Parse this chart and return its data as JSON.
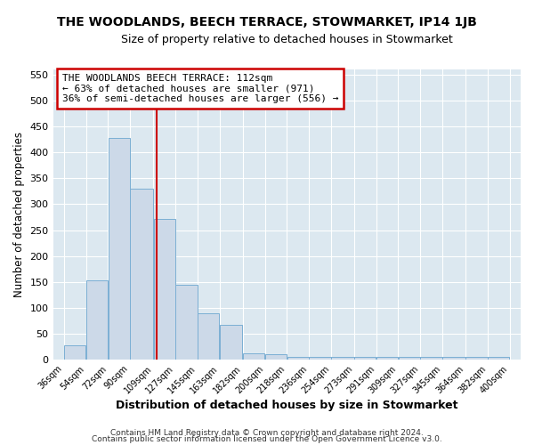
{
  "title": "THE WOODLANDS, BEECH TERRACE, STOWMARKET, IP14 1JB",
  "subtitle": "Size of property relative to detached houses in Stowmarket",
  "xlabel": "Distribution of detached houses by size in Stowmarket",
  "ylabel": "Number of detached properties",
  "bin_edges": [
    36,
    54,
    72,
    90,
    109,
    127,
    145,
    163,
    182,
    200,
    218,
    236,
    254,
    273,
    291,
    309,
    327,
    345,
    364,
    382,
    400
  ],
  "bar_heights": [
    28,
    153,
    428,
    330,
    271,
    145,
    90,
    68,
    13,
    10,
    6,
    5,
    5,
    5,
    5,
    5,
    5,
    5,
    5,
    6
  ],
  "bar_color": "#ccd9e8",
  "bar_edgecolor": "#7bafd4",
  "vline_x": 112,
  "vline_color": "#cc0000",
  "ylim": [
    0,
    560
  ],
  "yticks": [
    0,
    50,
    100,
    150,
    200,
    250,
    300,
    350,
    400,
    450,
    500,
    550
  ],
  "annotation_text": "THE WOODLANDS BEECH TERRACE: 112sqm\n← 63% of detached houses are smaller (971)\n36% of semi-detached houses are larger (556) →",
  "annotation_box_facecolor": "#ffffff",
  "annotation_box_edgecolor": "#cc0000",
  "footnote1": "Contains HM Land Registry data © Crown copyright and database right 2024.",
  "footnote2": "Contains public sector information licensed under the Open Government Licence v3.0.",
  "fig_bg_color": "#ffffff",
  "axes_bg_color": "#dce8f0",
  "grid_color": "#ffffff"
}
